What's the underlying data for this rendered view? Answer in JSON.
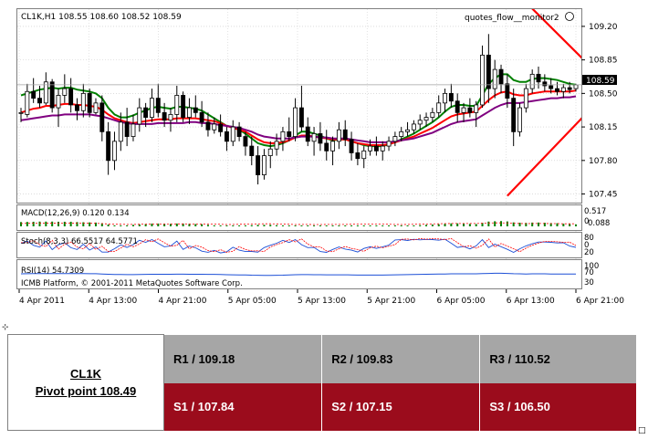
{
  "chart": {
    "header": "CL1K,H1  108.55 108.60 108.52 108.59",
    "watermark": "quotes_flow__monitor2",
    "copyright": "ICMB Platform, © 2001-2011 MetaQuotes Software Corp.",
    "price_label": "108.59",
    "y_ticks": [
      "109.20",
      "108.85",
      "108.50",
      "108.15",
      "107.80",
      "107.45"
    ],
    "x_ticks": [
      "4 Apr 2011",
      "4 Apr 13:00",
      "4 Apr 21:00",
      "5 Apr 05:00",
      "5 Apr 13:00",
      "5 Apr 21:00",
      "6 Apr 05:00",
      "6 Apr 13:00",
      "6 Apr 21:00"
    ],
    "macd": {
      "label": "MACD(12,26,9) 0.120 0.134",
      "ticks": [
        "0.517",
        "0.088"
      ],
      "overlap_tick": "0"
    },
    "stoch": {
      "label": "Stoch(8,3,3) 66.5517 64.5771",
      "ticks": [
        "80",
        "20"
      ],
      "overlap_tick": "0"
    },
    "rsi": {
      "label": "RSI(14) 54.7309",
      "ticks": [
        "100",
        "70",
        "30"
      ]
    }
  },
  "colors": {
    "bull": "#ffffff",
    "bear": "#000000",
    "green_ma": "#008000",
    "red_ma": "#ff0000",
    "purple_ma": "#800080",
    "trendline": "#ff0000",
    "rsi_line": "#1c4fd6",
    "pivot_resist_bg": "#a6a6a6",
    "pivot_support_bg": "#9b0c1c"
  },
  "pivot": {
    "symbol": "CL1K",
    "pivot_label": "Pivot point 108.49",
    "r1": "R1 / 109.18",
    "r2": "R2  / 109.83",
    "r3": "R3 / 110.52",
    "s1": "S1 / 107.84",
    "s2": "S2 /  107.15",
    "s3": "S3 /  106.50"
  },
  "chart_data": {
    "type": "candlestick",
    "symbol": "CL1K",
    "timeframe": "H1",
    "last_bar": {
      "open": 108.55,
      "high": 108.6,
      "low": 108.52,
      "close": 108.59
    },
    "y_range": [
      107.36,
      109.38
    ],
    "price_ticks": [
      109.2,
      108.85,
      108.5,
      108.15,
      107.8,
      107.45
    ],
    "x_labels": [
      "4 Apr 2011",
      "4 Apr 13:00",
      "4 Apr 21:00",
      "5 Apr 05:00",
      "5 Apr 13:00",
      "5 Apr 21:00",
      "6 Apr 05:00",
      "6 Apr 13:00",
      "6 Apr 21:00"
    ],
    "candles": [
      [
        108.3,
        108.35,
        108.2,
        108.3
      ],
      [
        108.28,
        108.6,
        108.25,
        108.52
      ],
      [
        108.52,
        108.66,
        108.4,
        108.45
      ],
      [
        108.45,
        108.58,
        108.35,
        108.4
      ],
      [
        108.4,
        108.72,
        108.38,
        108.62
      ],
      [
        108.62,
        108.65,
        108.3,
        108.35
      ],
      [
        108.35,
        108.55,
        108.15,
        108.48
      ],
      [
        108.48,
        108.7,
        108.4,
        108.55
      ],
      [
        108.55,
        108.66,
        108.3,
        108.38
      ],
      [
        108.38,
        108.45,
        108.22,
        108.32
      ],
      [
        108.32,
        108.6,
        108.25,
        108.5
      ],
      [
        108.5,
        108.55,
        108.25,
        108.3
      ],
      [
        108.3,
        108.45,
        108.28,
        108.4
      ],
      [
        108.4,
        108.48,
        108.0,
        108.1
      ],
      [
        108.1,
        108.2,
        107.65,
        107.8
      ],
      [
        107.8,
        108.1,
        107.7,
        108.0
      ],
      [
        108.0,
        108.3,
        107.9,
        108.2
      ],
      [
        108.2,
        108.35,
        107.95,
        108.05
      ],
      [
        108.05,
        108.28,
        108.0,
        108.18
      ],
      [
        108.18,
        108.45,
        108.1,
        108.35
      ],
      [
        108.35,
        108.4,
        108.15,
        108.25
      ],
      [
        108.25,
        108.55,
        108.2,
        108.45
      ],
      [
        108.45,
        108.6,
        108.25,
        108.3
      ],
      [
        108.3,
        108.4,
        108.15,
        108.22
      ],
      [
        108.22,
        108.35,
        108.1,
        108.28
      ],
      [
        108.28,
        108.58,
        108.2,
        108.48
      ],
      [
        108.48,
        108.52,
        108.2,
        108.25
      ],
      [
        108.25,
        108.45,
        108.18,
        108.35
      ],
      [
        108.35,
        108.48,
        108.25,
        108.3
      ],
      [
        108.3,
        108.42,
        108.15,
        108.2
      ],
      [
        108.2,
        108.3,
        108.05,
        108.12
      ],
      [
        108.12,
        108.25,
        108.08,
        108.18
      ],
      [
        108.18,
        108.28,
        108.05,
        108.1
      ],
      [
        108.1,
        108.15,
        107.9,
        108.0
      ],
      [
        108.0,
        108.22,
        107.95,
        108.15
      ],
      [
        108.15,
        108.2,
        108.0,
        108.05
      ],
      [
        108.05,
        108.1,
        107.85,
        107.95
      ],
      [
        107.95,
        108.05,
        107.75,
        107.85
      ],
      [
        107.85,
        107.95,
        107.55,
        107.65
      ],
      [
        107.65,
        107.92,
        107.6,
        107.85
      ],
      [
        107.85,
        108.0,
        107.72,
        107.92
      ],
      [
        107.92,
        108.08,
        107.85,
        108.0
      ],
      [
        108.0,
        108.15,
        107.9,
        108.1
      ],
      [
        108.1,
        108.25,
        108.0,
        108.05
      ],
      [
        108.05,
        108.45,
        108.0,
        108.35
      ],
      [
        108.35,
        108.58,
        108.1,
        108.15
      ],
      [
        108.15,
        108.25,
        107.95,
        108.0
      ],
      [
        108.0,
        108.15,
        107.85,
        108.08
      ],
      [
        108.08,
        108.2,
        107.9,
        107.98
      ],
      [
        107.98,
        108.12,
        107.8,
        107.9
      ],
      [
        107.9,
        108.05,
        107.75,
        108.0
      ],
      [
        108.0,
        108.2,
        107.92,
        108.12
      ],
      [
        108.12,
        108.22,
        107.95,
        108.02
      ],
      [
        108.02,
        108.1,
        107.8,
        107.88
      ],
      [
        107.88,
        107.98,
        107.75,
        107.82
      ],
      [
        107.82,
        107.95,
        107.72,
        107.9
      ],
      [
        107.9,
        108.02,
        107.85,
        107.95
      ],
      [
        107.95,
        108.05,
        107.85,
        107.9
      ],
      [
        107.9,
        108.0,
        107.8,
        107.95
      ],
      [
        107.95,
        108.05,
        107.9,
        108.0
      ],
      [
        108.0,
        108.1,
        107.95,
        108.05
      ],
      [
        108.05,
        108.15,
        108.0,
        108.1
      ],
      [
        108.1,
        108.2,
        108.05,
        108.12
      ],
      [
        108.12,
        108.22,
        108.08,
        108.18
      ],
      [
        108.18,
        108.28,
        108.12,
        108.22
      ],
      [
        108.22,
        108.3,
        108.15,
        108.25
      ],
      [
        108.25,
        108.35,
        108.2,
        108.3
      ],
      [
        108.3,
        108.48,
        108.25,
        108.4
      ],
      [
        108.4,
        108.55,
        108.3,
        108.5
      ],
      [
        108.5,
        108.6,
        108.35,
        108.42
      ],
      [
        108.42,
        108.5,
        108.2,
        108.3
      ],
      [
        108.3,
        108.4,
        108.2,
        108.35
      ],
      [
        108.35,
        108.45,
        108.25,
        108.3
      ],
      [
        108.3,
        108.42,
        108.15,
        108.38
      ],
      [
        108.38,
        109.0,
        108.35,
        108.9
      ],
      [
        108.9,
        109.12,
        108.4,
        108.55
      ],
      [
        108.55,
        108.85,
        108.45,
        108.75
      ],
      [
        108.75,
        108.8,
        108.5,
        108.6
      ],
      [
        108.6,
        108.7,
        108.35,
        108.45
      ],
      [
        108.45,
        108.55,
        107.95,
        108.1
      ],
      [
        108.1,
        108.4,
        108.05,
        108.35
      ],
      [
        108.35,
        108.6,
        108.3,
        108.55
      ],
      [
        108.55,
        108.75,
        108.5,
        108.7
      ],
      [
        108.7,
        108.78,
        108.55,
        108.62
      ],
      [
        108.62,
        108.7,
        108.52,
        108.58
      ],
      [
        108.58,
        108.66,
        108.5,
        108.55
      ],
      [
        108.55,
        108.62,
        108.48,
        108.52
      ],
      [
        108.52,
        108.6,
        108.45,
        108.56
      ],
      [
        108.56,
        108.62,
        108.5,
        108.54
      ],
      [
        108.55,
        108.6,
        108.52,
        108.59
      ]
    ],
    "series": [
      {
        "values": [
          108.48,
          108.5,
          108.52,
          108.54,
          108.55,
          108.56,
          108.55,
          108.56,
          108.56,
          108.54,
          108.53,
          108.52,
          108.5,
          108.45,
          108.35,
          108.28,
          108.25,
          108.25,
          108.27,
          108.3,
          108.32,
          108.35,
          108.36,
          108.35,
          108.34,
          108.36,
          108.36,
          108.35,
          108.34,
          108.32,
          108.28,
          108.24,
          108.2,
          108.16,
          108.15,
          108.12,
          108.08,
          108.03,
          107.98,
          107.96,
          107.95,
          107.96,
          107.98,
          108.01,
          108.06,
          108.1,
          108.1,
          108.08,
          108.06,
          108.03,
          108.01,
          108.02,
          108.02,
          108.0,
          107.98,
          107.96,
          107.95,
          107.95,
          107.95,
          107.97,
          107.99,
          108.02,
          108.05,
          108.08,
          108.12,
          108.16,
          108.2,
          108.25,
          108.31,
          108.36,
          108.38,
          108.38,
          108.37,
          108.37,
          108.48,
          108.6,
          108.66,
          108.7,
          108.7,
          108.64,
          108.62,
          108.62,
          108.65,
          108.66,
          108.66,
          108.65,
          108.64,
          108.62,
          108.6,
          108.59
        ]
      },
      {
        "values": [
          108.3,
          108.32,
          108.34,
          108.35,
          108.37,
          108.37,
          108.38,
          108.39,
          108.39,
          108.38,
          108.38,
          108.37,
          108.36,
          108.33,
          108.28,
          108.24,
          108.22,
          108.2,
          108.19,
          108.2,
          108.21,
          108.22,
          108.23,
          108.23,
          108.23,
          108.24,
          108.24,
          108.24,
          108.24,
          108.23,
          108.22,
          108.21,
          108.19,
          108.16,
          108.14,
          108.12,
          108.1,
          108.06,
          108.02,
          107.99,
          107.98,
          107.98,
          107.99,
          108.01,
          108.04,
          108.06,
          108.06,
          108.05,
          108.04,
          108.03,
          108.02,
          108.02,
          108.02,
          108.0,
          107.98,
          107.97,
          107.96,
          107.96,
          107.96,
          107.97,
          107.99,
          108.01,
          108.03,
          108.05,
          108.08,
          108.11,
          108.14,
          108.18,
          108.22,
          108.26,
          108.28,
          108.29,
          108.3,
          108.31,
          108.37,
          108.43,
          108.48,
          108.51,
          108.52,
          108.49,
          108.48,
          108.48,
          108.5,
          108.51,
          108.52,
          108.52,
          108.52,
          108.52,
          108.52,
          108.53
        ]
      },
      {
        "values": [
          108.22,
          108.23,
          108.24,
          108.25,
          108.26,
          108.27,
          108.27,
          108.28,
          108.28,
          108.28,
          108.28,
          108.28,
          108.27,
          108.26,
          108.24,
          108.22,
          108.2,
          108.19,
          108.18,
          108.18,
          108.18,
          108.18,
          108.19,
          108.19,
          108.19,
          108.19,
          108.19,
          108.2,
          108.2,
          108.19,
          108.19,
          108.18,
          108.17,
          108.16,
          108.15,
          108.14,
          108.12,
          108.1,
          108.07,
          108.05,
          108.04,
          108.03,
          108.03,
          108.03,
          108.04,
          108.05,
          108.05,
          108.05,
          108.04,
          108.04,
          108.03,
          108.03,
          108.03,
          108.02,
          108.01,
          108.0,
          107.99,
          107.99,
          107.99,
          107.99,
          108.0,
          108.01,
          108.02,
          108.03,
          108.05,
          108.07,
          108.09,
          108.12,
          108.15,
          108.18,
          108.2,
          108.21,
          108.22,
          108.23,
          108.27,
          108.31,
          108.35,
          108.38,
          108.4,
          108.4,
          108.4,
          108.41,
          108.42,
          108.43,
          108.44,
          108.45,
          108.45,
          108.46,
          108.46,
          108.47
        ]
      }
    ],
    "trendlines": [
      {
        "from": {
          "bar": 81,
          "price": 109.45
        },
        "to": {
          "bar": 96,
          "price": 108.48
        }
      },
      {
        "from": {
          "bar": 78,
          "price": 107.43
        },
        "to": {
          "bar": 97,
          "price": 108.72
        }
      }
    ],
    "subwindows": [
      {
        "name": "MACD(12,26,9)",
        "values": [
          0.12,
          0.134
        ]
      },
      {
        "name": "Stoch(8,3,3)",
        "values": [
          66.5517,
          64.5771
        ]
      },
      {
        "name": "RSI(14)",
        "values": [
          54.7309
        ]
      }
    ]
  }
}
